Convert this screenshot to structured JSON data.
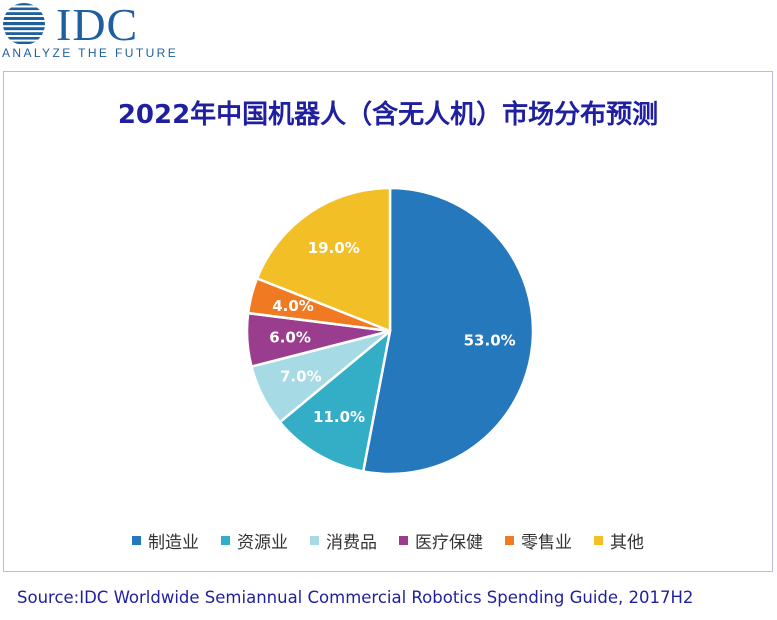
{
  "logo": {
    "name": "IDC",
    "tagline": "ANALYZE THE FUTURE",
    "color": "#1f5f9e"
  },
  "chart_data": {
    "type": "pie",
    "title": "2022年中国机器人（含无人机）市场分布预测",
    "categories": [
      "制造业",
      "资源业",
      "消费品",
      "医疗保健",
      "零售业",
      "其他"
    ],
    "values": [
      53.0,
      11.0,
      7.0,
      6.0,
      4.0,
      19.0
    ],
    "labels": [
      "53.0%",
      "11.0%",
      "7.0%",
      "6.0%",
      "4.0%",
      "19.0%"
    ],
    "colors": [
      "#2678bd",
      "#34aec7",
      "#a6dbe5",
      "#9b3d8e",
      "#ef7a22",
      "#f2bf26"
    ],
    "start": "12 o'clock",
    "direction": "clockwise",
    "legend_position": "bottom"
  },
  "source": "Source:IDC Worldwide Semiannual Commercial Robotics Spending Guide, 2017H2"
}
